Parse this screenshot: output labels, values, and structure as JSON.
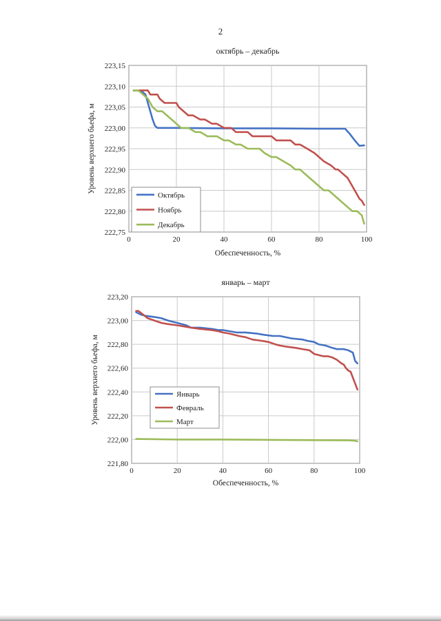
{
  "page": {
    "number": "2"
  },
  "chart_data": [
    {
      "type": "line",
      "title": "октябрь – декабрь",
      "xlabel": "Обеспеченность, %",
      "ylabel": "Уровень верхнего бьефа, м",
      "xlim": [
        0,
        100
      ],
      "ylim": [
        222.75,
        223.15
      ],
      "xticks": [
        0,
        20,
        40,
        60,
        80,
        100
      ],
      "xtick_labels": [
        "0",
        "20",
        "40",
        "60",
        "80",
        "100"
      ],
      "yticks": [
        222.75,
        222.8,
        222.85,
        222.9,
        222.95,
        223.0,
        223.05,
        223.1,
        223.15
      ],
      "ytick_labels": [
        "222,75",
        "222,80",
        "222,85",
        "222,90",
        "222,95",
        "223,00",
        "223,05",
        "223,10",
        "223,15"
      ],
      "grid": true,
      "legend_position": "bottom-left",
      "series": [
        {
          "name": "Октябрь",
          "color": "#4472C4",
          "x": [
            2,
            5,
            7,
            8,
            9,
            10,
            11,
            12,
            14,
            20,
            40,
            60,
            80,
            91,
            93,
            95,
            97,
            99
          ],
          "y": [
            223.09,
            223.09,
            223.08,
            223.06,
            223.04,
            223.02,
            223.005,
            223.0,
            223.0,
            223.0,
            222.999,
            222.999,
            222.998,
            222.998,
            222.985,
            222.97,
            222.957,
            222.958
          ]
        },
        {
          "name": "Ноябрь",
          "color": "#C0504D",
          "x": [
            2,
            8,
            9,
            10,
            12,
            13,
            15,
            20,
            21,
            23,
            25,
            27,
            30,
            32,
            35,
            37,
            40,
            43,
            45,
            47,
            50,
            52,
            55,
            58,
            60,
            62,
            65,
            68,
            70,
            72,
            75,
            78,
            80,
            82,
            85,
            87,
            88,
            90,
            92,
            93,
            94,
            95,
            96,
            97,
            98,
            99
          ],
          "y": [
            223.09,
            223.09,
            223.08,
            223.08,
            223.08,
            223.07,
            223.06,
            223.06,
            223.05,
            223.04,
            223.03,
            223.03,
            223.02,
            223.02,
            223.01,
            223.01,
            223.0,
            223.0,
            222.99,
            222.99,
            222.99,
            222.98,
            222.98,
            222.98,
            222.98,
            222.97,
            222.97,
            222.97,
            222.96,
            222.96,
            222.95,
            222.94,
            222.93,
            222.92,
            222.91,
            222.9,
            222.9,
            222.89,
            222.88,
            222.87,
            222.86,
            222.85,
            222.84,
            222.83,
            222.825,
            222.815
          ]
        },
        {
          "name": "Декабрь",
          "color": "#9BBB59",
          "x": [
            2,
            4,
            6,
            8,
            9,
            10,
            12,
            14,
            16,
            18,
            20,
            22,
            25,
            28,
            30,
            33,
            37,
            40,
            42,
            45,
            47,
            50,
            52,
            55,
            57,
            60,
            62,
            65,
            68,
            70,
            72,
            74,
            76,
            78,
            80,
            82,
            84,
            86,
            88,
            90,
            92,
            94,
            96,
            98,
            99
          ],
          "y": [
            223.09,
            223.09,
            223.08,
            223.07,
            223.06,
            223.05,
            223.04,
            223.04,
            223.03,
            223.02,
            223.01,
            223.0,
            223.0,
            222.99,
            222.99,
            222.98,
            222.98,
            222.97,
            222.97,
            222.96,
            222.96,
            222.95,
            222.95,
            222.95,
            222.94,
            222.93,
            222.93,
            222.92,
            222.91,
            222.9,
            222.9,
            222.89,
            222.88,
            222.87,
            222.86,
            222.85,
            222.85,
            222.84,
            222.83,
            222.82,
            222.81,
            222.8,
            222.8,
            222.79,
            222.77
          ]
        }
      ]
    },
    {
      "type": "line",
      "title": "январь – март",
      "xlabel": "Обеспеченность, %",
      "ylabel": "Уровень верхнего бьефа, м",
      "xlim": [
        0,
        100
      ],
      "ylim": [
        221.8,
        223.2
      ],
      "xticks": [
        0,
        20,
        40,
        60,
        80,
        100
      ],
      "xtick_labels": [
        "0",
        "20",
        "40",
        "60",
        "80",
        "100"
      ],
      "yticks": [
        221.8,
        222.0,
        222.2,
        222.4,
        222.6,
        222.8,
        223.0,
        223.2
      ],
      "ytick_labels": [
        "221,80",
        "222,00",
        "222,20",
        "222,40",
        "222,60",
        "222,80",
        "223,00",
        "223,20"
      ],
      "grid": true,
      "legend_position": "bottom-left",
      "series": [
        {
          "name": "Январь",
          "color": "#4472C4",
          "x": [
            2,
            4,
            6,
            10,
            13,
            16,
            20,
            22,
            24,
            26,
            30,
            35,
            38,
            40,
            43,
            46,
            50,
            55,
            58,
            62,
            65,
            70,
            75,
            77,
            80,
            82,
            85,
            88,
            90,
            93,
            95,
            96,
            97,
            98,
            99
          ],
          "y": [
            223.07,
            223.05,
            223.04,
            223.03,
            223.02,
            223.0,
            222.98,
            222.97,
            222.96,
            222.94,
            222.94,
            222.93,
            222.92,
            222.92,
            222.91,
            222.9,
            222.9,
            222.89,
            222.88,
            222.87,
            222.87,
            222.85,
            222.84,
            222.83,
            222.82,
            222.8,
            222.79,
            222.77,
            222.76,
            222.76,
            222.75,
            222.74,
            222.73,
            222.66,
            222.64
          ]
        },
        {
          "name": "Февраль",
          "color": "#C0504D",
          "x": [
            2,
            3,
            5,
            7,
            10,
            13,
            16,
            20,
            23,
            26,
            30,
            35,
            38,
            40,
            43,
            47,
            50,
            53,
            57,
            60,
            63,
            65,
            68,
            72,
            75,
            78,
            80,
            82,
            84,
            86,
            88,
            90,
            92,
            93,
            94,
            95,
            96,
            97,
            98,
            99
          ],
          "y": [
            223.08,
            223.08,
            223.05,
            223.02,
            223.0,
            222.98,
            222.97,
            222.96,
            222.95,
            222.94,
            222.93,
            222.92,
            222.91,
            222.9,
            222.89,
            222.87,
            222.86,
            222.84,
            222.83,
            222.82,
            222.8,
            222.79,
            222.78,
            222.77,
            222.76,
            222.75,
            222.72,
            222.71,
            222.7,
            222.7,
            222.69,
            222.67,
            222.64,
            222.63,
            222.6,
            222.58,
            222.57,
            222.52,
            222.47,
            222.42
          ]
        },
        {
          "name": "Март",
          "color": "#9BBB59",
          "x": [
            2,
            20,
            40,
            60,
            80,
            95,
            98,
            99
          ],
          "y": [
            222.005,
            222.0,
            222.0,
            221.997,
            221.995,
            221.993,
            221.99,
            221.985
          ]
        }
      ]
    }
  ]
}
